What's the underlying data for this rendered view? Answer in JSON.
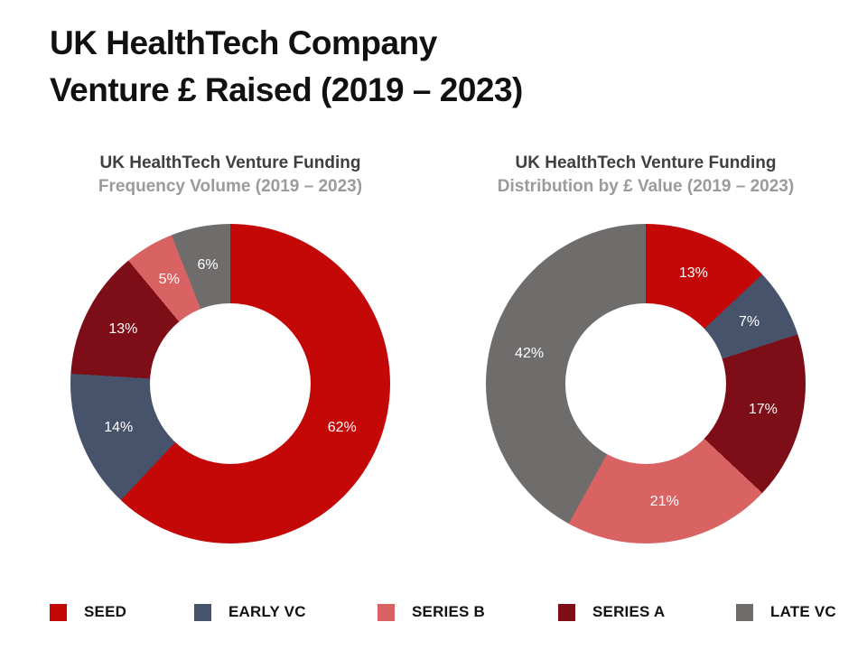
{
  "slide_title": {
    "line1": "UK HealthTech Company",
    "line2": "Venture £ Raised (2019 – 2023)"
  },
  "colors": {
    "seed": "#C40707",
    "early_vc": "#46536B",
    "series_b": "#D96262",
    "series_a": "#7D0E18",
    "late_vc": "#6F6C6C",
    "title_text": "#111111",
    "chart_title_primary": "#3F3F3F",
    "chart_title_secondary": "#9C9A9A",
    "slice_label_text": "#FFFFFF",
    "background": "#FFFFFF"
  },
  "chart_data": [
    {
      "type": "pie",
      "subtype": "donut",
      "title": "UK HealthTech Venture Funding",
      "subtitle": "Frequency Volume (2019 – 2023)",
      "unit": "%",
      "start_angle_deg": 0,
      "direction": "clockwise",
      "slices": [
        {
          "label": "SEED",
          "value": 62,
          "display": "62%",
          "color": "#C40707"
        },
        {
          "label": "EARLY VC",
          "value": 14,
          "display": "14%",
          "color": "#46536B"
        },
        {
          "label": "SERIES A",
          "value": 13,
          "display": "13%",
          "color": "#7D0E18"
        },
        {
          "label": "SERIES B",
          "value": 5,
          "display": "5%",
          "color": "#D96262"
        },
        {
          "label": "LATE VC",
          "value": 6,
          "display": "6%",
          "color": "#6F6C6C"
        }
      ]
    },
    {
      "type": "pie",
      "subtype": "donut",
      "title": "UK HealthTech Venture Funding",
      "subtitle": "Distribution by £ Value (2019 – 2023)",
      "unit": "%",
      "start_angle_deg": 0,
      "direction": "clockwise",
      "slices": [
        {
          "label": "SEED",
          "value": 13,
          "display": "13%",
          "color": "#C40707"
        },
        {
          "label": "EARLY VC",
          "value": 7,
          "display": "7%",
          "color": "#46536B"
        },
        {
          "label": "SERIES A",
          "value": 17,
          "display": "17%",
          "color": "#7D0E18"
        },
        {
          "label": "SERIES B",
          "value": 21,
          "display": "21%",
          "color": "#D96262"
        },
        {
          "label": "LATE VC",
          "value": 42,
          "display": "42%",
          "color": "#6F6C6C"
        }
      ]
    }
  ],
  "legend": {
    "items": [
      {
        "label": "SEED",
        "color": "#C40707"
      },
      {
        "label": "EARLY VC",
        "color": "#46536B"
      },
      {
        "label": "SERIES B",
        "color": "#D96262"
      },
      {
        "label": "SERIES A",
        "color": "#7D0E18"
      },
      {
        "label": "LATE VC",
        "color": "#6F6C6C"
      }
    ]
  }
}
